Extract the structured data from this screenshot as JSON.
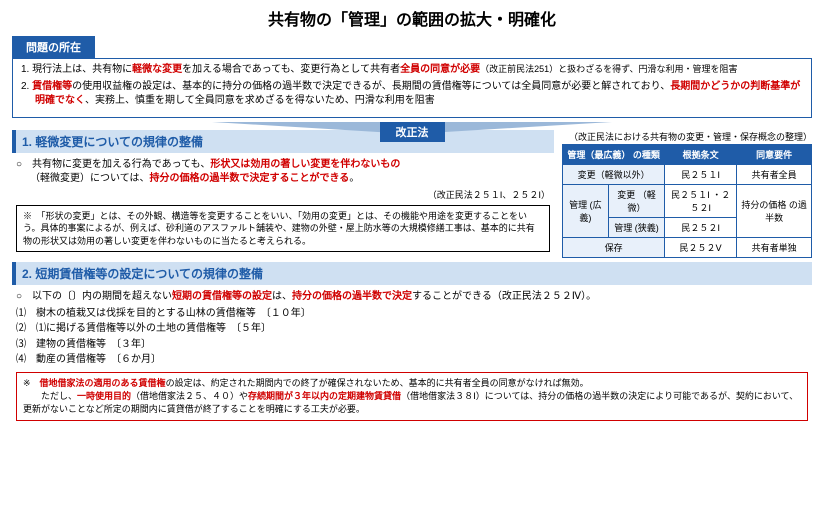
{
  "title": "共有物の「管理」の範囲の拡大・明確化",
  "problem": {
    "tab": "問題の所在",
    "items": [
      {
        "pre": "1. 現行法上は、共有物に",
        "r1": "軽微な変更",
        "mid1": "を加える場合であっても、変更行為として共有者",
        "r2": "全員の同意が必要",
        "mid2": "（改正前民法251）と扱わざるを得ず、円滑な利用・管理を阻害"
      },
      {
        "pre": "2. ",
        "r1": "賃借権等",
        "mid1": "の使用収益権の設定は、基本的に持分の価格の過半数で決定できるが、長期間の賃借権等については全員同意が必要と解されており、",
        "r2": "長期間かどうかの判断基準が明確でなく",
        "mid2": "、実務上、慎重を期して全員同意を求めざるを得ないため、円滑な利用を阻害"
      }
    ]
  },
  "kaisei_label": "改正法",
  "section1": {
    "head": "1. 軽微変更についての規律の整備",
    "line1_a": "○　共有物に変更を加える行為であっても、",
    "line1_r1": "形状又は効用の著しい変更を伴わないもの",
    "line2_a": "（軽微変更）については、",
    "line2_r1": "持分の価格の過半数で決定することができる",
    "line2_b": "。",
    "ref": "（改正民法２５１Ⅰ、２５２Ⅰ）",
    "note": "※　「形状の変更」とは、その外観、構造等を変更することをいい、「効用の変更」とは、その機能や用途を変更することをいう。具体的事案によるが、例えば、砂利道のアスファルト舗装や、建物の外壁・屋上防水等の大規模修繕工事は、基本的に共有物の形状又は効用の著しい変更を伴わないものに当たると考えられる。"
  },
  "section2": {
    "head": "2. 短期賃借権等の設定についての規律の整備",
    "lead_a": "○　以下の〔〕内の期間を超えない",
    "lead_r1": "短期の賃借権等の設定",
    "lead_b": "は、",
    "lead_r2": "持分の価格の過半数で決定",
    "lead_c": "することができる（改正民法２５２Ⅳ）。",
    "items": [
      "⑴　樹木の植栽又は伐採を目的とする山林の賃借権等　〔１０年〕",
      "⑵　⑴に掲げる賃借権等以外の土地の賃借権等　〔５年〕",
      "⑶　建物の賃借権等　〔３年〕",
      "⑷　動産の賃借権等　〔６か月〕"
    ],
    "warn_a": "※　",
    "warn_r1": "借地借家法の適用のある賃借権",
    "warn_b": "の設定は、約定された期間内での終了が確保されないため、基本的に共有者全員の同意がなければ無効。",
    "warn2_a": "　　ただし、",
    "warn2_r1": "一時使用目的",
    "warn2_b": "（借地借家法２５、４０）や",
    "warn2_r2": "存続期間が３年以内の定期建物賃貸借",
    "warn2_c": "（借地借家法３８Ⅰ）については、持分の価格の過半数の決定により可能であるが、契約において、更新がないことなど所定の期間内に賃貸借が終了することを明確にする工夫が必要。"
  },
  "table": {
    "caption": "（改正民法における共有物の変更・管理・保存概念の整理）",
    "h1": "管理（最広義）\nの種類",
    "h2": "根拠条文",
    "h3": "同意要件",
    "r1c1": "変更（軽微以外）",
    "r1c2": "民２５１Ⅰ",
    "r1c3": "共有者全員",
    "r2g": "管理\n(広義)",
    "r2c1": "変更\n（軽微）",
    "r2c2": "民２５１Ⅰ\n・２５２Ⅰ",
    "r2c3": "持分の価格\nの過半数",
    "r3c1": "管理\n(狭義)",
    "r3c2": "民２５２Ⅰ",
    "r4c1": "保存",
    "r4c2": "民２５２Ⅴ",
    "r4c3": "共有者単独"
  }
}
